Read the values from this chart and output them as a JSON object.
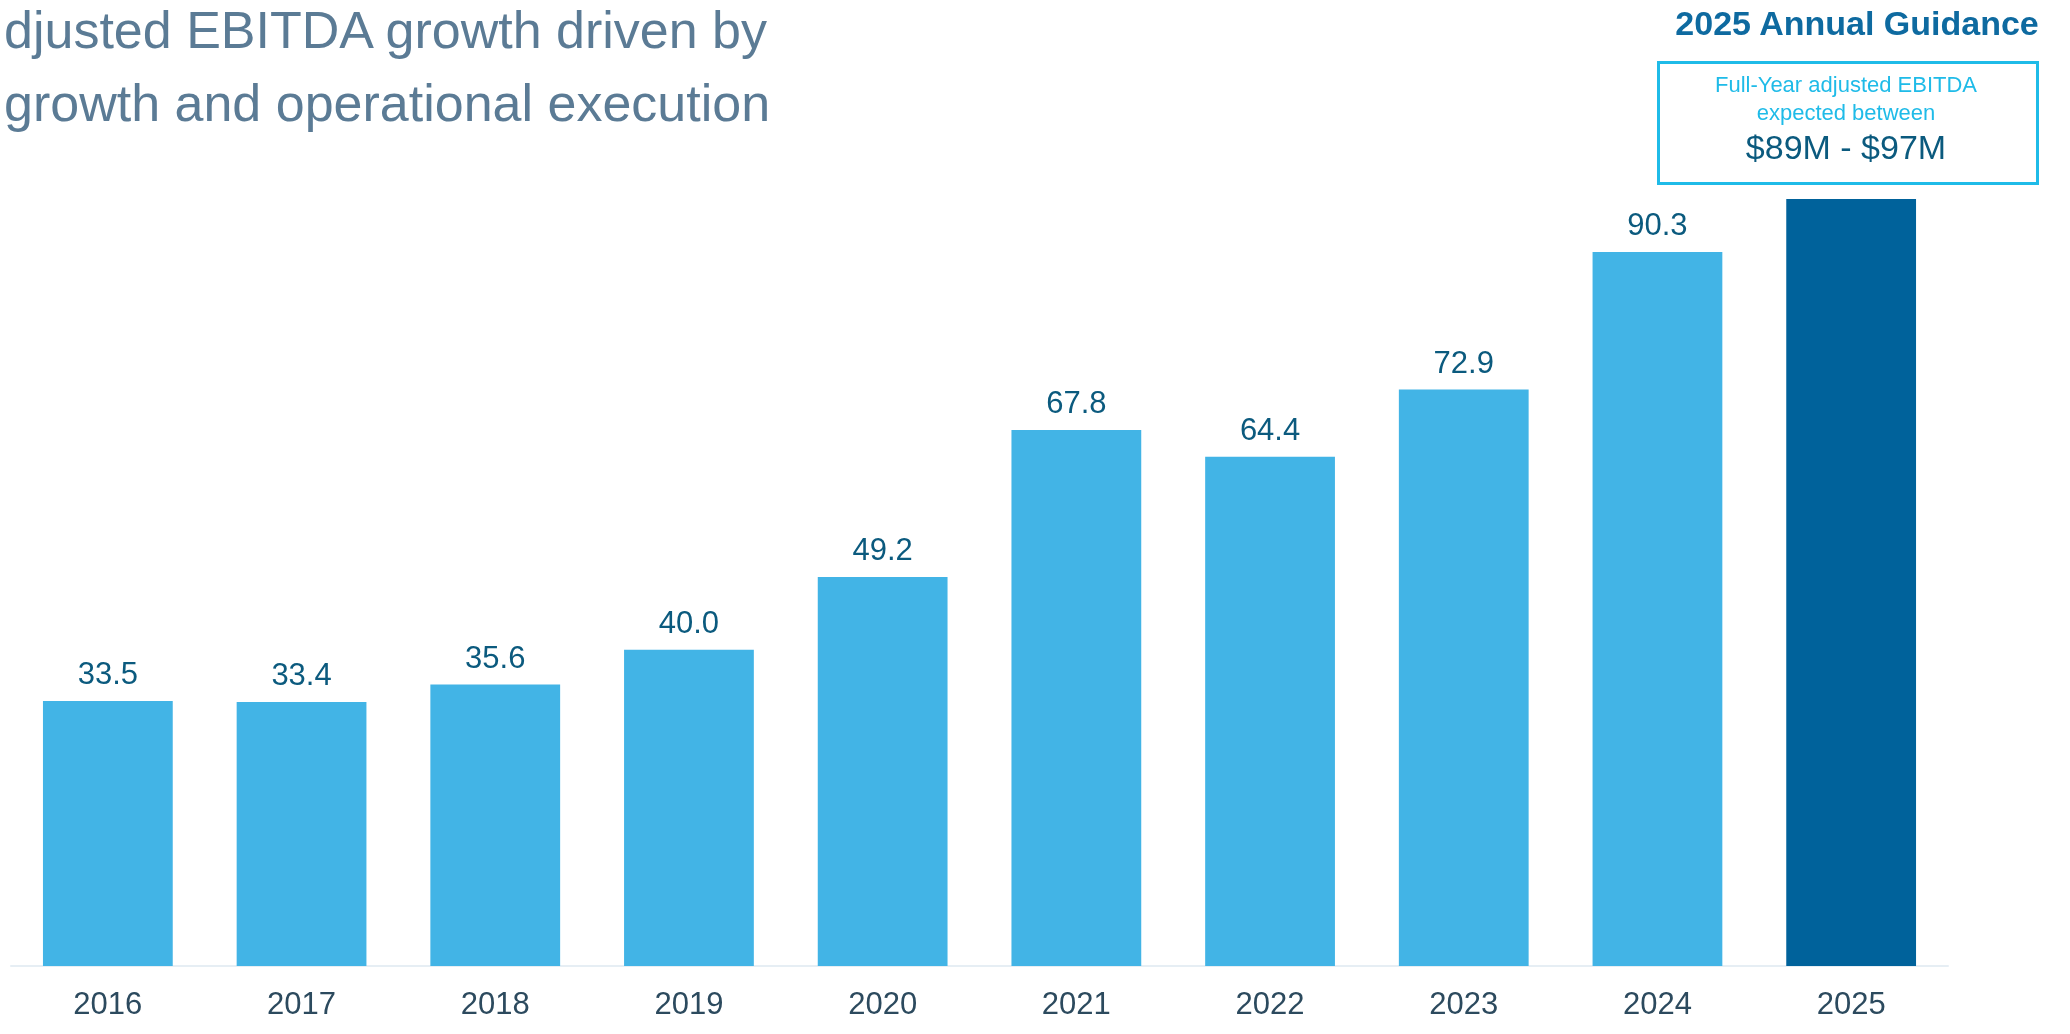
{
  "chart_data": {
    "type": "bar",
    "title": "djusted EBITDA growth driven by\ngrowth and operational execution",
    "categories": [
      "2016",
      "2017",
      "2018",
      "2019",
      "2020",
      "2021",
      "2022",
      "2023",
      "2024",
      "2025"
    ],
    "values": [
      33.5,
      33.4,
      35.6,
      40.0,
      49.2,
      67.8,
      64.4,
      72.9,
      90.3,
      97
    ],
    "colors": [
      "#42b4e6",
      "#42b4e6",
      "#42b4e6",
      "#42b4e6",
      "#42b4e6",
      "#42b4e6",
      "#42b4e6",
      "#42b4e6",
      "#42b4e6",
      "#00629b"
    ],
    "value_labels": [
      "33.5",
      "33.4",
      "35.6",
      "40.0",
      "49.2",
      "67.8",
      "64.4",
      "72.9",
      "90.3",
      null
    ],
    "annotations": [
      "2025 Annual Guidance",
      "Full-Year adjusted EBITDA\nexpected between",
      "$89M - $97M"
    ],
    "grid": false
  }
}
